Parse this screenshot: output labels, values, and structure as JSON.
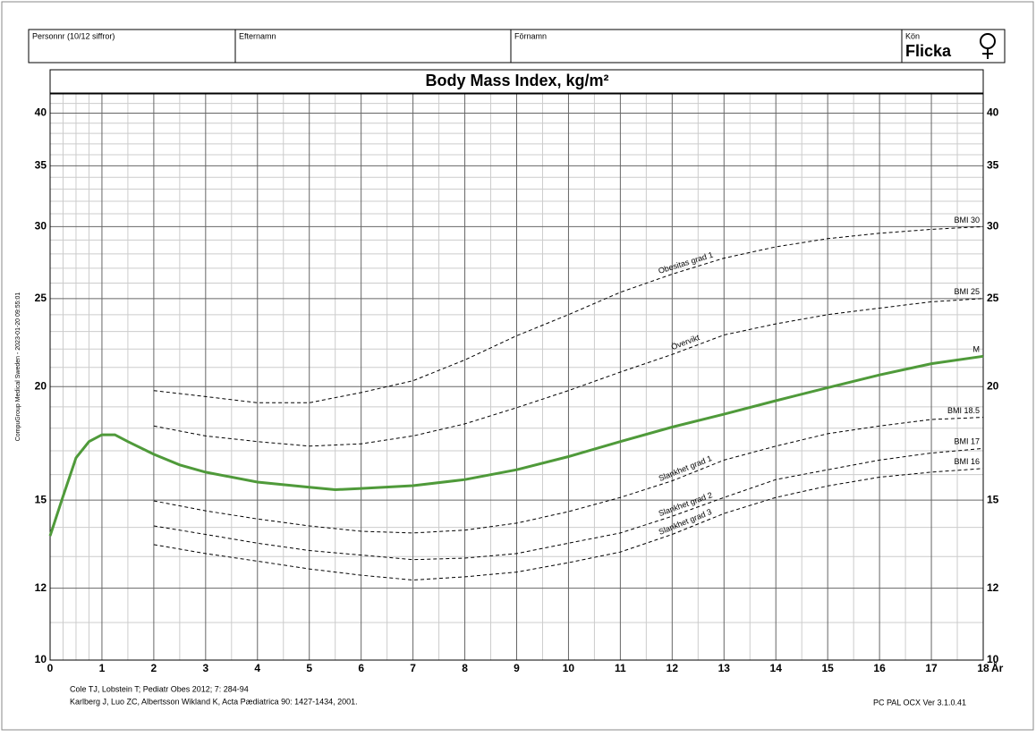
{
  "header": {
    "fields": [
      "Personnr (10/12 siffror)",
      "Efternamn",
      "Förnamn",
      "Kön"
    ],
    "gender": "Flicka"
  },
  "side_text": "CompuGroup Medical Sweden - 2023-01-20 09:55:01",
  "footer": {
    "references": [
      "Cole TJ, Lobstein T; Pediatr Obes 2012; 7: 284-94",
      "Karlberg J, Luo ZC, Albertsson Wikland K, Acta Pædiatrica 90: 1427-1434, 2001."
    ],
    "version": "PC PAL OCX Ver 3.1.0.41"
  },
  "chart_data": {
    "type": "line",
    "title": "Body Mass Index, kg/m²",
    "x_unit": "År",
    "xlim": [
      0,
      18
    ],
    "ylim": [
      10,
      42
    ],
    "log_y": true,
    "grid": true,
    "xticks": [
      0,
      1,
      2,
      3,
      4,
      5,
      6,
      7,
      8,
      9,
      10,
      11,
      12,
      13,
      14,
      15,
      16,
      17,
      18
    ],
    "yticks": [
      10,
      12,
      15,
      20,
      25,
      30,
      35,
      40
    ],
    "x_minor_grid": [
      0.25,
      0.5,
      0.75,
      1.5,
      2.5,
      3.5,
      4.5,
      5.5,
      6.5,
      7.5,
      8.5,
      9.5,
      10.5,
      11.5,
      12.5,
      13.5,
      14.5,
      15.5,
      16.5,
      17.5
    ],
    "y_minor_grid": [
      11,
      13,
      14,
      16,
      17,
      18,
      19,
      21,
      22,
      23,
      24,
      26,
      27,
      28,
      29,
      31,
      32,
      33,
      34,
      36,
      37,
      38,
      39,
      41,
      42
    ],
    "series": [
      {
        "name": "BMI 30",
        "label": "Obesitas grad 1",
        "color": "#000000",
        "dashed": true,
        "x": [
          2,
          3,
          4,
          5,
          6,
          7,
          8,
          9,
          10,
          11,
          12,
          13,
          14,
          15,
          16,
          17,
          18
        ],
        "values": [
          19.8,
          19.5,
          19.2,
          19.2,
          19.7,
          20.3,
          21.4,
          22.75,
          24.0,
          25.4,
          26.6,
          27.7,
          28.5,
          29.1,
          29.5,
          29.8,
          30.0
        ]
      },
      {
        "name": "BMI 25",
        "label": "Övervikt",
        "color": "#000000",
        "dashed": true,
        "x": [
          2,
          3,
          4,
          5,
          6,
          7,
          8,
          9,
          10,
          11,
          12,
          13,
          14,
          15,
          16,
          17,
          18
        ],
        "values": [
          18.1,
          17.65,
          17.4,
          17.2,
          17.3,
          17.65,
          18.2,
          18.96,
          19.8,
          20.75,
          21.7,
          22.8,
          23.45,
          24.0,
          24.4,
          24.8,
          25.0
        ]
      },
      {
        "name": "M",
        "color": "#4f9a3a",
        "dashed": false,
        "x": [
          0,
          0.25,
          0.5,
          0.75,
          1,
          1.25,
          1.5,
          2,
          2.5,
          3,
          4,
          5,
          5.5,
          6,
          7,
          8,
          9,
          10,
          11,
          12,
          13,
          14,
          15,
          16,
          17,
          18
        ],
        "values": [
          13.7,
          15.15,
          16.7,
          17.4,
          17.7,
          17.7,
          17.4,
          16.85,
          16.4,
          16.1,
          15.7,
          15.5,
          15.4,
          15.45,
          15.56,
          15.8,
          16.2,
          16.75,
          17.4,
          18.05,
          18.65,
          19.3,
          19.95,
          20.6,
          21.2,
          21.6
        ]
      },
      {
        "name": "BMI 18.5",
        "label": "Slankhet grad 1",
        "color": "#000000",
        "dashed": true,
        "x": [
          2,
          3,
          4,
          5,
          6,
          7,
          8,
          9,
          10,
          11,
          12,
          13,
          14,
          15,
          16,
          17,
          18
        ],
        "values": [
          14.97,
          14.6,
          14.3,
          14.05,
          13.86,
          13.8,
          13.9,
          14.15,
          14.57,
          15.1,
          15.75,
          16.6,
          17.2,
          17.75,
          18.1,
          18.4,
          18.5
        ]
      },
      {
        "name": "BMI 17",
        "label": "Slankhet grad 2",
        "color": "#000000",
        "dashed": true,
        "x": [
          2,
          3,
          4,
          5,
          6,
          7,
          8,
          9,
          10,
          11,
          12,
          13,
          14,
          15,
          16,
          17,
          18
        ],
        "values": [
          14.05,
          13.75,
          13.45,
          13.2,
          13.05,
          12.9,
          12.95,
          13.1,
          13.45,
          13.8,
          14.4,
          15.1,
          15.8,
          16.2,
          16.6,
          16.9,
          17.1
        ]
      },
      {
        "name": "BMI 16",
        "label": "Slankhet grad 3",
        "color": "#000000",
        "dashed": true,
        "x": [
          2,
          3,
          4,
          5,
          6,
          7,
          8,
          9,
          10,
          11,
          12,
          13,
          14,
          15,
          16,
          17,
          18
        ],
        "values": [
          13.4,
          13.1,
          12.85,
          12.6,
          12.4,
          12.25,
          12.35,
          12.5,
          12.8,
          13.15,
          13.75,
          14.5,
          15.1,
          15.55,
          15.9,
          16.1,
          16.25
        ]
      }
    ]
  }
}
